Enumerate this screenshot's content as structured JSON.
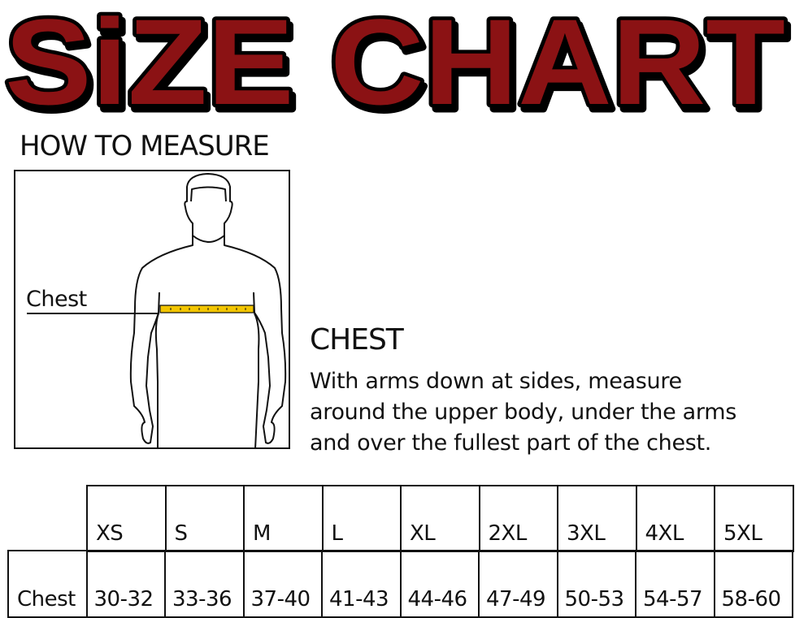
{
  "title": "SiZE CHART",
  "colors": {
    "title_fill": "#8b1214",
    "title_outline": "#000000",
    "tape": "#f2c500"
  },
  "how_to_measure": "HOW TO MEASURE",
  "figure": {
    "label": "Chest"
  },
  "instructions": {
    "heading": "CHEST",
    "lines": [
      "With arms down at sides, measure",
      "around the upper body, under the arms",
      "and over the fullest part of the chest."
    ]
  },
  "table": {
    "sizes": [
      "XS",
      "S",
      "M",
      "L",
      "XL",
      "2XL",
      "3XL",
      "4XL",
      "5XL"
    ],
    "row_label": "Chest",
    "values": [
      "30-32",
      "33-36",
      "37-40",
      "41-43",
      "44-46",
      "47-49",
      "50-53",
      "54-57",
      "58-60"
    ]
  }
}
